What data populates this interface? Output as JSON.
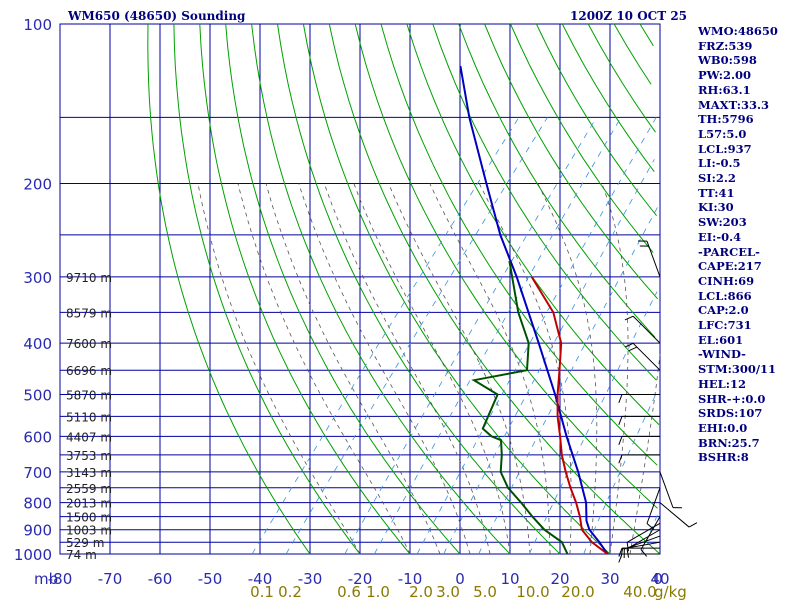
{
  "header": {
    "title": "WM650 (48650) Sounding",
    "time": "1200Z 10 OCT 25"
  },
  "stats": [
    "WMO:48650",
    "FRZ:539",
    "WB0:598",
    "PW:2.00",
    "RH:63.1",
    "MAXT:33.3",
    "TH:5796",
    "L57:5.0",
    "LCL:937",
    "LI:-0.5",
    "SI:2.2",
    "TT:41",
    "KI:30",
    "SW:203",
    "EI:-0.4",
    "-PARCEL-",
    "CAPE:217",
    "CINH:69",
    "LCL:866",
    "CAP:2.0",
    "LFC:731",
    "EL:601",
    "-WIND-",
    "STM:300/11",
    "HEL:12",
    "SHR-+:0.0",
    "SRDS:107",
    "EHI:0.0",
    "BRN:25.7",
    "BSHR:8"
  ],
  "colors": {
    "grid": "#0000a0",
    "dry_adiabat": "#00a000",
    "moist_adiabat": "#555555",
    "mixing_ratio": "#3a8fe0",
    "temperature": "#c00000",
    "dewpoint": "#005000",
    "parcel": "#0000c0",
    "axis_label": "#2a2ab0",
    "mixing_label": "#8a7a00",
    "text": "#00007f"
  },
  "chart_data": {
    "type": "skew-t",
    "x_unit_label": "mb",
    "pressure_levels": [
      100,
      200,
      300,
      400,
      500,
      600,
      700,
      800,
      900,
      1000
    ],
    "pressure_labels": [
      "100",
      "200",
      "300",
      "400",
      "500",
      "600",
      "700",
      "800",
      "900",
      "1000"
    ],
    "temperature_ticks": [
      -80,
      -70,
      -60,
      -50,
      -40,
      -30,
      -20,
      -10,
      0,
      10,
      20,
      30,
      40
    ],
    "temperature_tick_labels": [
      "-80",
      "-70",
      "-60",
      "-50",
      "-40",
      "-30",
      "-20",
      "-10",
      "0",
      "10",
      "20",
      "30",
      "40"
    ],
    "mixing_ratio_labels": [
      "0.1",
      "0.2",
      "0.6",
      "1.0",
      "2.0",
      "3.0",
      "5.0",
      "10.0",
      "20.0",
      "40.0"
    ],
    "mixing_ratio_unit": "g/kg",
    "wind_axis_label": "0",
    "height_labels": [
      {
        "p": 300,
        "text": "9710 m"
      },
      {
        "p": 350,
        "text": "8579 m"
      },
      {
        "p": 400,
        "text": "7600 m"
      },
      {
        "p": 450,
        "text": "6696 m"
      },
      {
        "p": 500,
        "text": "5870 m"
      },
      {
        "p": 550,
        "text": "5110 m"
      },
      {
        "p": 600,
        "text": "4407 m"
      },
      {
        "p": 650,
        "text": "3753 m"
      },
      {
        "p": 700,
        "text": "3143 m"
      },
      {
        "p": 750,
        "text": "2559 m"
      },
      {
        "p": 800,
        "text": "2013 m"
      },
      {
        "p": 850,
        "text": "1500 m"
      },
      {
        "p": 900,
        "text": "1003 m"
      },
      {
        "p": 950,
        "text": "529 m"
      },
      {
        "p": 1000,
        "text": "74 m"
      }
    ],
    "temperature_profile": [
      {
        "p": 1000,
        "t": 29.5
      },
      {
        "p": 950,
        "t": 24.5
      },
      {
        "p": 900,
        "t": 20.5
      },
      {
        "p": 850,
        "t": 18
      },
      {
        "p": 800,
        "t": 15
      },
      {
        "p": 750,
        "t": 11.5
      },
      {
        "p": 700,
        "t": 8
      },
      {
        "p": 650,
        "t": 4.5
      },
      {
        "p": 600,
        "t": 1.2
      },
      {
        "p": 550,
        "t": -2.5
      },
      {
        "p": 500,
        "t": -6
      },
      {
        "p": 450,
        "t": -9.5
      },
      {
        "p": 400,
        "t": -13.5
      },
      {
        "p": 350,
        "t": -20
      },
      {
        "p": 300,
        "t": -30
      }
    ],
    "dewpoint_profile": [
      {
        "p": 1000,
        "td": 21.5
      },
      {
        "p": 950,
        "td": 18.5
      },
      {
        "p": 900,
        "td": 13
      },
      {
        "p": 850,
        "td": 8.5
      },
      {
        "p": 800,
        "td": 4
      },
      {
        "p": 750,
        "td": -1
      },
      {
        "p": 700,
        "td": -5
      },
      {
        "p": 650,
        "td": -7.5
      },
      {
        "p": 610,
        "td": -10
      },
      {
        "p": 600,
        "td": -12.5
      },
      {
        "p": 580,
        "td": -15.5
      },
      {
        "p": 500,
        "td": -18
      },
      {
        "p": 470,
        "td": -25
      },
      {
        "p": 450,
        "td": -16
      },
      {
        "p": 400,
        "td": -20
      },
      {
        "p": 350,
        "td": -27
      },
      {
        "p": 280,
        "td": -37
      }
    ],
    "parcel_profile": [
      {
        "p": 1000,
        "t": 29.5
      },
      {
        "p": 950,
        "t": 26
      },
      {
        "p": 900,
        "t": 22
      },
      {
        "p": 866,
        "t": 20
      },
      {
        "p": 800,
        "t": 17
      },
      {
        "p": 700,
        "t": 10.5
      },
      {
        "p": 600,
        "t": 2.5
      },
      {
        "p": 500,
        "t": -6.5
      },
      {
        "p": 400,
        "t": -18
      },
      {
        "p": 300,
        "t": -33
      },
      {
        "p": 250,
        "t": -43
      },
      {
        "p": 200,
        "t": -54
      },
      {
        "p": 150,
        "t": -68
      },
      {
        "p": 120,
        "t": -78
      }
    ],
    "wind_barbs": [
      {
        "p": 1000,
        "dir": 90,
        "spd": 10
      },
      {
        "p": 975,
        "dir": 90,
        "spd": 10
      },
      {
        "p": 950,
        "dir": 100,
        "spd": 10
      },
      {
        "p": 925,
        "dir": 110,
        "spd": 10
      },
      {
        "p": 900,
        "dir": 120,
        "spd": 10
      },
      {
        "p": 875,
        "dir": 120,
        "spd": 10
      },
      {
        "p": 850,
        "dir": 150,
        "spd": 10
      },
      {
        "p": 800,
        "dir": 230,
        "spd": 10
      },
      {
        "p": 750,
        "dir": 160,
        "spd": 10
      },
      {
        "p": 700,
        "dir": 200,
        "spd": 10
      },
      {
        "p": 650,
        "dir": 90,
        "spd": 10
      },
      {
        "p": 600,
        "dir": 90,
        "spd": 10
      },
      {
        "p": 550,
        "dir": 90,
        "spd": 10
      },
      {
        "p": 500,
        "dir": 90,
        "spd": 10
      },
      {
        "p": 450,
        "dir": 45,
        "spd": 25
      },
      {
        "p": 400,
        "dir": 45,
        "spd": 10
      },
      {
        "p": 300,
        "dir": 20,
        "spd": 20
      }
    ],
    "grid": true
  }
}
